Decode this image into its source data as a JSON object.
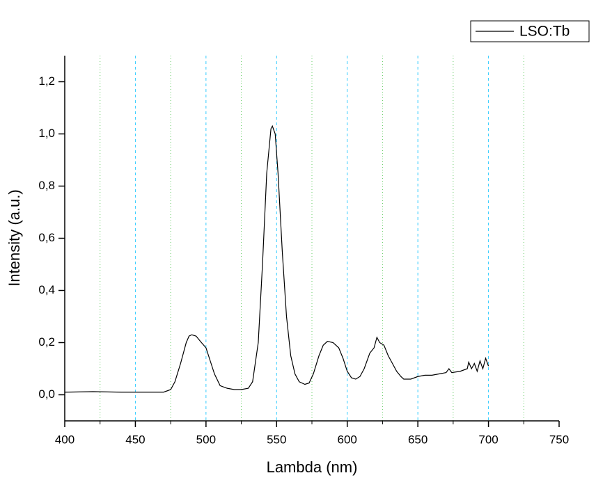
{
  "chart_data": {
    "type": "line",
    "x_label": "Lambda (nm)",
    "y_label": "Intensity (a.u.)",
    "xlim": [
      400,
      750
    ],
    "xticks": [
      400,
      450,
      500,
      550,
      600,
      650,
      700,
      750
    ],
    "x_minor_grid": [
      425,
      475,
      525,
      575,
      625,
      675,
      725
    ],
    "ylim": [
      -0.1,
      1.3
    ],
    "yticks": [
      {
        "value": 0,
        "label": "0,0"
      },
      {
        "value": 0.2,
        "label": "0,2"
      },
      {
        "value": 0.4,
        "label": "0,4"
      },
      {
        "value": 0.6,
        "label": "0,6"
      },
      {
        "value": 0.8,
        "label": "0,8"
      },
      {
        "value": 1.0,
        "label": "1,0"
      },
      {
        "value": 1.2,
        "label": "1,2"
      }
    ],
    "grid": true,
    "grid_color": "#33ccff",
    "minor_grid_color": "#66cc66",
    "legend": "top-right",
    "series": [
      {
        "name": "LSO:Tb",
        "color": "#000000",
        "x": [
          400,
          420,
          440,
          460,
          470,
          475,
          478,
          482,
          486,
          488,
          490,
          493,
          496,
          500,
          503,
          506,
          510,
          515,
          520,
          525,
          530,
          533,
          537,
          540,
          543,
          546,
          547,
          549,
          551,
          554,
          557,
          560,
          563,
          566,
          570,
          573,
          576,
          580,
          583,
          586,
          590,
          594,
          597,
          600,
          603,
          606,
          609,
          612,
          616,
          619,
          621,
          623,
          626,
          629,
          632,
          635,
          638,
          640,
          645,
          650,
          655,
          660,
          665,
          670,
          672,
          674,
          680,
          685,
          686,
          688,
          690,
          692,
          694,
          696,
          698,
          700
        ],
        "values": [
          0.01,
          0.012,
          0.01,
          0.01,
          0.01,
          0.02,
          0.05,
          0.12,
          0.2,
          0.225,
          0.23,
          0.225,
          0.205,
          0.18,
          0.13,
          0.08,
          0.035,
          0.025,
          0.02,
          0.02,
          0.025,
          0.05,
          0.2,
          0.5,
          0.85,
          1.02,
          1.03,
          1.0,
          0.85,
          0.55,
          0.3,
          0.15,
          0.08,
          0.05,
          0.04,
          0.045,
          0.08,
          0.15,
          0.19,
          0.205,
          0.2,
          0.18,
          0.14,
          0.09,
          0.065,
          0.06,
          0.07,
          0.1,
          0.16,
          0.18,
          0.22,
          0.2,
          0.19,
          0.15,
          0.12,
          0.09,
          0.07,
          0.06,
          0.06,
          0.07,
          0.075,
          0.075,
          0.08,
          0.085,
          0.1,
          0.085,
          0.09,
          0.1,
          0.125,
          0.1,
          0.12,
          0.09,
          0.13,
          0.1,
          0.14,
          0.11
        ]
      }
    ]
  }
}
